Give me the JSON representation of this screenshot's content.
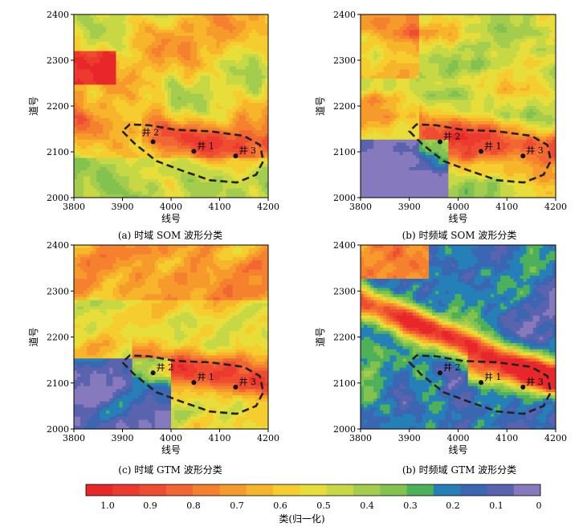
{
  "figure": {
    "panels": [
      {
        "caption": "(a) 时域 SOM 波形分类",
        "variant": 0
      },
      {
        "caption": "(b) 时频域 SOM 波形分类",
        "variant": 1
      },
      {
        "caption": "(c) 时域 GTM 波形分类",
        "variant": 2
      },
      {
        "caption": "(b) 时频域 GTM 波形分类",
        "variant": 3
      }
    ],
    "colorbar": {
      "label": "类(归一化)",
      "ticks": [
        "1.0",
        "0.9",
        "0.8",
        "0.7",
        "0.6",
        "0.5",
        "0.4",
        "0.3",
        "0.2",
        "0.1",
        "0"
      ],
      "colors": [
        "#e8272b",
        "#ec3a2e",
        "#ef4d31",
        "#f26634",
        "#f5812f",
        "#f69a2c",
        "#f7b52b",
        "#f6cd2e",
        "#e8de3b",
        "#c7d845",
        "#a4cd4e",
        "#84c250",
        "#4db15a",
        "#2680b8",
        "#3a66b2",
        "#5a63ae",
        "#8679bd"
      ]
    }
  },
  "chart_data": [
    {
      "type": "heatmap",
      "title": "(a) 时域 SOM 波形分类",
      "xlabel": "线号",
      "ylabel": "道号",
      "xlim": [
        3800,
        4200
      ],
      "ylim": [
        2000,
        2400
      ],
      "xticks": [
        "3800",
        "3900",
        "4000",
        "4100",
        "4200"
      ],
      "yticks": [
        "2000",
        "2100",
        "2200",
        "2300",
        "2400"
      ],
      "value_range": [
        0,
        1
      ],
      "wells": [
        {
          "label": "井 2",
          "x": 3963,
          "y": 2122
        },
        {
          "label": "井 1",
          "x": 4047,
          "y": 2101
        },
        {
          "label": "井 3",
          "x": 4133,
          "y": 2091
        }
      ]
    },
    {
      "type": "heatmap",
      "title": "(b) 时频域 SOM 波形分类",
      "xlabel": "线号",
      "ylabel": "道号",
      "xlim": [
        3800,
        4200
      ],
      "ylim": [
        2000,
        2400
      ],
      "xticks": [
        "3800",
        "3900",
        "4000",
        "4100",
        "4200"
      ],
      "yticks": [
        "2000",
        "2100",
        "2200",
        "2300",
        "2400"
      ],
      "value_range": [
        0,
        1
      ],
      "wells": [
        {
          "label": "井 2",
          "x": 3963,
          "y": 2122
        },
        {
          "label": "井 1",
          "x": 4047,
          "y": 2101
        },
        {
          "label": "井 3",
          "x": 4133,
          "y": 2091
        }
      ]
    },
    {
      "type": "heatmap",
      "title": "(c) 时域 GTM 波形分类",
      "xlabel": "线号",
      "ylabel": "道号",
      "xlim": [
        3800,
        4200
      ],
      "ylim": [
        2000,
        2400
      ],
      "xticks": [
        "3800",
        "3900",
        "4000",
        "4100",
        "4200"
      ],
      "yticks": [
        "2000",
        "2100",
        "2200",
        "2300",
        "2400"
      ],
      "value_range": [
        0,
        1
      ],
      "wells": [
        {
          "label": "井 2",
          "x": 3963,
          "y": 2122
        },
        {
          "label": "井 1",
          "x": 4047,
          "y": 2101
        },
        {
          "label": "井 3",
          "x": 4133,
          "y": 2091
        }
      ]
    },
    {
      "type": "heatmap",
      "title": "(b) 时频域 GTM 波形分类",
      "xlabel": "线号",
      "ylabel": "道号",
      "xlim": [
        3800,
        4200
      ],
      "ylim": [
        2000,
        2400
      ],
      "xticks": [
        "3800",
        "3900",
        "4000",
        "4100",
        "4200"
      ],
      "yticks": [
        "2000",
        "2100",
        "2200",
        "2300",
        "2400"
      ],
      "value_range": [
        0,
        1
      ],
      "wells": [
        {
          "label": "井 2",
          "x": 3963,
          "y": 2122
        },
        {
          "label": "井 1",
          "x": 4047,
          "y": 2101
        },
        {
          "label": "井 3",
          "x": 4133,
          "y": 2091
        }
      ]
    }
  ]
}
